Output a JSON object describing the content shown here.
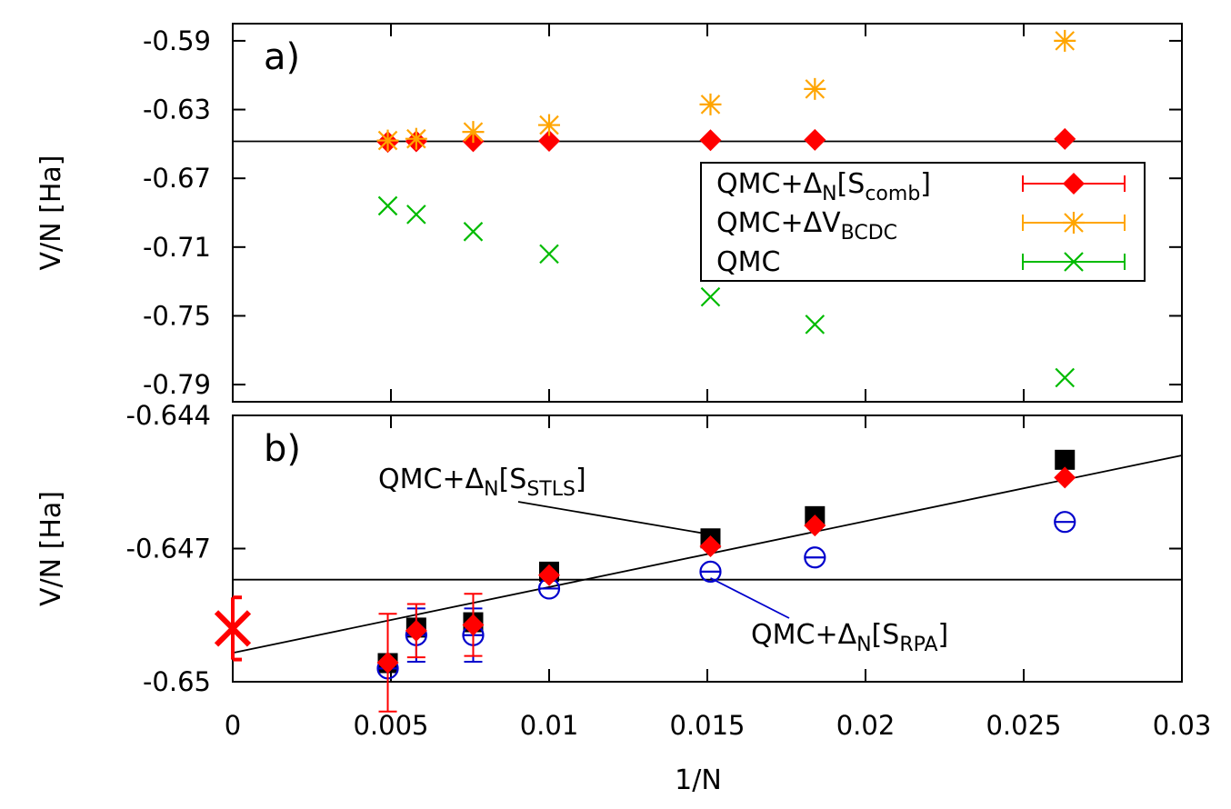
{
  "chart_data": [
    {
      "panel": "a)",
      "type": "scatter",
      "xlabel": "1/N",
      "ylabel": "V/N [Ha]",
      "xlim": [
        0,
        0.03
      ],
      "ylim": [
        -0.8,
        -0.58
      ],
      "yticks": [
        "-0.59",
        "-0.63",
        "-0.67",
        "-0.71",
        "-0.75",
        "-0.79"
      ],
      "yticks_values": [
        -0.59,
        -0.63,
        -0.67,
        -0.71,
        -0.75,
        -0.79
      ],
      "hline": -0.6485,
      "legend": {
        "position": "right",
        "entries": [
          {
            "pre": "QMC+Δ",
            "sub1": "N",
            "mid": "[S",
            "sub2": "comb",
            "post": "]",
            "series": "comb"
          },
          {
            "pre": "QMC+ΔV",
            "sub1": "BCDC",
            "mid": "",
            "sub2": "",
            "post": "",
            "series": "bcdc"
          },
          {
            "pre": "QMC",
            "sub1": "",
            "mid": "",
            "sub2": "",
            "post": "",
            "series": "qmc"
          }
        ]
      },
      "series": [
        {
          "name": "QMC+ΔN[Scomb]",
          "key": "comb",
          "marker": "diamond",
          "color": "#ff0000",
          "x": [
            0.0049,
            0.0058,
            0.0076,
            0.01,
            0.0151,
            0.0184,
            0.0263
          ],
          "y": [
            -0.6488,
            -0.6485,
            -0.6484,
            -0.6482,
            -0.6478,
            -0.6476,
            -0.6471
          ]
        },
        {
          "name": "QMC+ΔVBCDC",
          "key": "bcdc",
          "marker": "star",
          "color": "#ffa500",
          "x": [
            0.0049,
            0.0058,
            0.0076,
            0.01,
            0.0151,
            0.0184,
            0.0263
          ],
          "y": [
            -0.648,
            -0.647,
            -0.643,
            -0.639,
            -0.627,
            -0.618,
            -0.59
          ]
        },
        {
          "name": "QMC",
          "key": "qmc",
          "marker": "x",
          "color": "#00bb00",
          "x": [
            0.0049,
            0.0058,
            0.0076,
            0.01,
            0.0151,
            0.0184,
            0.0263
          ],
          "y": [
            -0.686,
            -0.691,
            -0.701,
            -0.714,
            -0.739,
            -0.755,
            -0.786
          ]
        }
      ]
    },
    {
      "panel": "b)",
      "type": "scatter",
      "xlabel": "1/N",
      "ylabel": "V/N [Ha]",
      "xlim": [
        0,
        0.03
      ],
      "ylim": [
        -0.65,
        -0.644
      ],
      "xticks": [
        "0",
        "0.005",
        "0.01",
        "0.015",
        "0.02",
        "0.025",
        "0.03"
      ],
      "xticks_values": [
        0,
        0.005,
        0.01,
        0.015,
        0.02,
        0.025,
        0.03
      ],
      "yticks": [
        "-0.644",
        "-0.647",
        "-0.65"
      ],
      "yticks_values": [
        -0.644,
        -0.647,
        -0.65
      ],
      "hline": -0.6477,
      "fit_line": {
        "x": [
          0,
          0.03
        ],
        "y": [
          -0.64935,
          -0.6449
        ]
      },
      "extrapolated": {
        "x": 0,
        "y": -0.6488,
        "err": 0.0007,
        "color": "#ff0000"
      },
      "annotations": [
        {
          "pre": "QMC+Δ",
          "sub1": "N",
          "mid": "[S",
          "sub2": "STLS",
          "post": "]",
          "color": "#000000",
          "target_x": 0.0151,
          "target_y": -0.6468
        },
        {
          "pre": "QMC+Δ",
          "sub1": "N",
          "mid": "[S",
          "sub2": "RPA",
          "post": "]",
          "color": "#0000cc",
          "target_x": 0.0151,
          "target_y": -0.6475
        }
      ],
      "series": [
        {
          "name": "QMC+ΔN[SSTLS]",
          "key": "stls",
          "marker": "square",
          "color": "#000000",
          "x": [
            0.0049,
            0.0058,
            0.0076,
            0.01,
            0.0151,
            0.0184,
            0.0263
          ],
          "y": [
            -0.64958,
            -0.64878,
            -0.64866,
            -0.64752,
            -0.64677,
            -0.64627,
            -0.645
          ],
          "err": [
            0,
            0,
            0,
            0,
            0,
            0,
            0
          ]
        },
        {
          "name": "QMC+ΔN[SRPA]",
          "key": "rpa",
          "marker": "circle",
          "color": "#0000cc",
          "x": [
            0.0049,
            0.0058,
            0.0076,
            0.01,
            0.0151,
            0.0184,
            0.0263
          ],
          "y": [
            -0.6497,
            -0.64895,
            -0.64895,
            -0.6479,
            -0.64752,
            -0.6472,
            -0.6464
          ],
          "err": [
            0,
            0.0006,
            0.0006,
            0,
            0,
            0,
            0
          ]
        },
        {
          "name": "QMC+ΔN[Scomb]",
          "key": "comb",
          "marker": "diamond",
          "color": "#ff0000",
          "x": [
            0.0049,
            0.0058,
            0.0076,
            0.01,
            0.0151,
            0.0184,
            0.0263
          ],
          "y": [
            -0.64957,
            -0.64885,
            -0.64872,
            -0.6476,
            -0.64695,
            -0.64648,
            -0.6454
          ],
          "err": [
            0.0011,
            0.0006,
            0.0007,
            0,
            0,
            0,
            0
          ]
        }
      ]
    }
  ]
}
